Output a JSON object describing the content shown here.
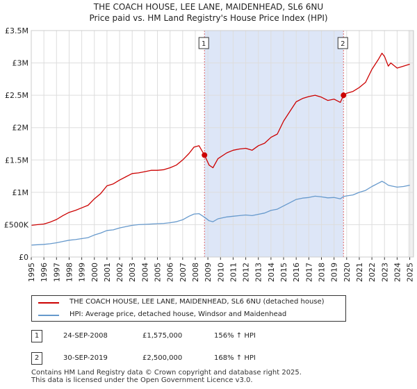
{
  "title_line1": "THE COACH HOUSE, LEE LANE, MAIDENHEAD, SL6 6NU",
  "title_line2": "Price paid vs. HM Land Registry's House Price Index (HPI)",
  "colors": {
    "property": "#cc0000",
    "hpi": "#6699cc",
    "shade": "#dde6f7",
    "marker_line": "#e06666"
  },
  "chart_data": {
    "type": "line",
    "title": "THE COACH HOUSE, LEE LANE, MAIDENHEAD, SL6 6NU — Price paid vs. HM Land Registry's House Price Index (HPI)",
    "xlabel": "",
    "ylabel": "",
    "xlim": [
      1995,
      2025.3
    ],
    "ylim": [
      0,
      3500000
    ],
    "y_ticks": [
      {
        "value": 0,
        "label": "£0"
      },
      {
        "value": 500000,
        "label": "£500K"
      },
      {
        "value": 1000000,
        "label": "£1M"
      },
      {
        "value": 1500000,
        "label": "£1.5M"
      },
      {
        "value": 2000000,
        "label": "£2M"
      },
      {
        "value": 2500000,
        "label": "£2.5M"
      },
      {
        "value": 3000000,
        "label": "£3M"
      },
      {
        "value": 3500000,
        "label": "£3.5M"
      }
    ],
    "x_ticks": [
      "1995",
      "1996",
      "1997",
      "1998",
      "1999",
      "2000",
      "2001",
      "2002",
      "2003",
      "2004",
      "2005",
      "2006",
      "2007",
      "2008",
      "2009",
      "2010",
      "2011",
      "2012",
      "2013",
      "2014",
      "2015",
      "2016",
      "2017",
      "2018",
      "2019",
      "2020",
      "2021",
      "2022",
      "2023",
      "2024",
      "2025"
    ],
    "grid": true,
    "series": [
      {
        "name": "THE COACH HOUSE, LEE LANE, MAIDENHEAD, SL6 6NU (detached house)",
        "x": [
          1995.0,
          1995.5,
          1996.0,
          1996.5,
          1997.0,
          1997.5,
          1998.0,
          1998.5,
          1999.0,
          1999.5,
          2000.0,
          2000.5,
          2001.0,
          2001.5,
          2002.0,
          2002.5,
          2003.0,
          2003.5,
          2004.0,
          2004.5,
          2005.0,
          2005.5,
          2006.0,
          2006.5,
          2007.0,
          2007.5,
          2007.9,
          2008.3,
          2008.73,
          2009.1,
          2009.4,
          2009.8,
          2010.5,
          2011.0,
          2011.5,
          2012.0,
          2012.5,
          2013.0,
          2013.5,
          2014.0,
          2014.5,
          2015.0,
          2015.5,
          2016.0,
          2016.5,
          2017.0,
          2017.5,
          2018.0,
          2018.5,
          2019.0,
          2019.5,
          2019.75,
          2020.0,
          2020.5,
          2021.0,
          2021.5,
          2022.0,
          2022.5,
          2022.8,
          2023.0,
          2023.3,
          2023.5,
          2024.0,
          2024.5,
          2025.0
        ],
        "values": [
          490000,
          500000,
          510000,
          540000,
          580000,
          640000,
          690000,
          720000,
          760000,
          800000,
          900000,
          980000,
          1100000,
          1130000,
          1190000,
          1240000,
          1290000,
          1300000,
          1320000,
          1340000,
          1340000,
          1350000,
          1380000,
          1420000,
          1500000,
          1600000,
          1700000,
          1720000,
          1575000,
          1420000,
          1380000,
          1520000,
          1610000,
          1650000,
          1670000,
          1680000,
          1650000,
          1720000,
          1760000,
          1850000,
          1900000,
          2100000,
          2250000,
          2400000,
          2450000,
          2480000,
          2500000,
          2470000,
          2420000,
          2440000,
          2390000,
          2500000,
          2530000,
          2560000,
          2620000,
          2700000,
          2900000,
          3050000,
          3150000,
          3100000,
          2950000,
          3000000,
          2920000,
          2950000,
          2980000
        ]
      },
      {
        "name": "HPI: Average price, detached house, Windsor and Maidenhead",
        "x": [
          1995.0,
          1995.5,
          1996.0,
          1996.5,
          1997.0,
          1997.5,
          1998.0,
          1998.5,
          1999.0,
          1999.5,
          2000.0,
          2000.5,
          2001.0,
          2001.5,
          2002.0,
          2002.5,
          2003.0,
          2003.5,
          2004.0,
          2004.5,
          2005.0,
          2005.5,
          2006.0,
          2006.5,
          2007.0,
          2007.5,
          2007.9,
          2008.3,
          2008.73,
          2009.1,
          2009.4,
          2009.8,
          2010.5,
          2011.0,
          2011.5,
          2012.0,
          2012.5,
          2013.0,
          2013.5,
          2014.0,
          2014.5,
          2015.0,
          2015.5,
          2016.0,
          2016.5,
          2017.0,
          2017.5,
          2018.0,
          2018.5,
          2019.0,
          2019.5,
          2019.75,
          2020.0,
          2020.5,
          2021.0,
          2021.5,
          2022.0,
          2022.5,
          2022.8,
          2023.0,
          2023.3,
          2023.5,
          2024.0,
          2024.5,
          2025.0
        ],
        "values": [
          185000,
          190000,
          195000,
          205000,
          220000,
          240000,
          260000,
          270000,
          285000,
          300000,
          340000,
          370000,
          410000,
          420000,
          450000,
          470000,
          490000,
          500000,
          505000,
          510000,
          515000,
          520000,
          530000,
          545000,
          575000,
          630000,
          665000,
          670000,
          615000,
          560000,
          545000,
          590000,
          620000,
          630000,
          640000,
          650000,
          640000,
          660000,
          680000,
          720000,
          740000,
          790000,
          840000,
          890000,
          910000,
          920000,
          940000,
          930000,
          915000,
          920000,
          900000,
          935000,
          945000,
          960000,
          1000000,
          1030000,
          1090000,
          1140000,
          1170000,
          1150000,
          1110000,
          1100000,
          1080000,
          1090000,
          1110000
        ]
      }
    ],
    "shaded_range": [
      2008.73,
      2019.75
    ],
    "annotations": [
      {
        "label": "1",
        "x": 2008.73,
        "y": 1575000
      },
      {
        "label": "2",
        "x": 2019.75,
        "y": 2500000
      }
    ]
  },
  "legend": [
    {
      "label": "THE COACH HOUSE, LEE LANE, MAIDENHEAD, SL6 6NU (detached house)"
    },
    {
      "label": "HPI: Average price, detached house, Windsor and Maidenhead"
    }
  ],
  "transactions": [
    {
      "num": "1",
      "date": "24-SEP-2008",
      "price": "£1,575,000",
      "hpi": "156% ↑ HPI"
    },
    {
      "num": "2",
      "date": "30-SEP-2019",
      "price": "£2,500,000",
      "hpi": "168% ↑ HPI"
    }
  ],
  "footer_line1": "Contains HM Land Registry data © Crown copyright and database right 2025.",
  "footer_line2": "This data is licensed under the Open Government Licence v3.0."
}
